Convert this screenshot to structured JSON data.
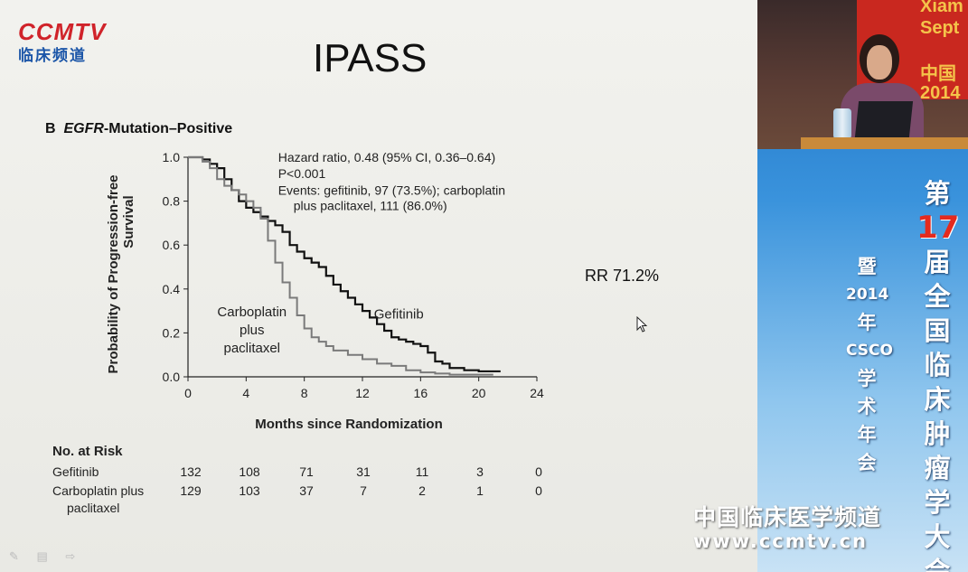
{
  "logo": {
    "main": "CCMTV",
    "sub": "临床频道"
  },
  "slide": {
    "title": "IPASS",
    "rr_text": "RR 71.2%",
    "controls": "✎ ▤ ⇨"
  },
  "chart_data": {
    "type": "line",
    "panel_letter": "B",
    "panel_title_italic": "EGFR",
    "panel_title_rest": "-Mutation–Positive",
    "xlabel": "Months since Randomization",
    "ylabel_line1": "Probability of Progression-free",
    "ylabel_line2": "Survival",
    "xlim": [
      0,
      24
    ],
    "ylim": [
      0,
      1.0
    ],
    "xticks": [
      "0",
      "4",
      "8",
      "12",
      "16",
      "20",
      "24"
    ],
    "yticks": [
      "0.0",
      "0.2",
      "0.4",
      "0.6",
      "0.8",
      "1.0"
    ],
    "annotations": [
      "Hazard ratio, 0.48 (95% CI, 0.36–0.64)",
      "P<0.001",
      "Events: gefitinib, 97 (73.5%); carboplatin",
      "plus paclitaxel, 111 (86.0%)"
    ],
    "series": [
      {
        "name": "Gefitinib",
        "color": "#111111",
        "x": [
          0,
          1,
          1.5,
          2,
          2.5,
          3,
          3.5,
          4,
          4.5,
          5,
          5.5,
          6,
          6.5,
          7,
          7.5,
          8,
          8.5,
          9,
          9.5,
          10,
          10.5,
          11,
          11.5,
          12,
          12.5,
          13,
          13.5,
          14,
          14.5,
          15,
          15.5,
          16,
          16.5,
          17,
          17.5,
          18,
          19,
          20,
          21.5
        ],
        "y": [
          1.0,
          0.99,
          0.97,
          0.95,
          0.9,
          0.85,
          0.8,
          0.77,
          0.75,
          0.73,
          0.71,
          0.69,
          0.66,
          0.6,
          0.57,
          0.54,
          0.52,
          0.5,
          0.46,
          0.42,
          0.39,
          0.36,
          0.33,
          0.3,
          0.27,
          0.24,
          0.21,
          0.18,
          0.17,
          0.16,
          0.15,
          0.14,
          0.11,
          0.07,
          0.06,
          0.04,
          0.03,
          0.025,
          0.025
        ]
      },
      {
        "name": "Carboplatin plus paclitaxel",
        "label_lines": [
          "Carboplatin",
          "plus",
          "paclitaxel"
        ],
        "color": "#7a7a7a",
        "x": [
          0,
          1,
          1.5,
          2,
          2.5,
          3,
          3.5,
          4,
          4.5,
          5,
          5.5,
          6,
          6.5,
          7,
          7.5,
          8,
          8.5,
          9,
          9.5,
          10,
          11,
          12,
          13,
          14,
          15,
          16,
          17,
          18,
          19,
          20,
          21
        ],
        "y": [
          1.0,
          0.98,
          0.95,
          0.9,
          0.87,
          0.85,
          0.83,
          0.8,
          0.77,
          0.72,
          0.62,
          0.52,
          0.43,
          0.36,
          0.28,
          0.22,
          0.18,
          0.16,
          0.14,
          0.12,
          0.1,
          0.08,
          0.06,
          0.05,
          0.03,
          0.02,
          0.015,
          0.01,
          0.01,
          0.01,
          0.01
        ]
      }
    ]
  },
  "risk_table": {
    "title": "No. at Risk",
    "rows": [
      {
        "label_lines": [
          "Gefitinib"
        ],
        "values": [
          "132",
          "108",
          "71",
          "31",
          "11",
          "3",
          "0"
        ]
      },
      {
        "label_lines": [
          "Carboplatin plus",
          "paclitaxel"
        ],
        "values": [
          "129",
          "103",
          "37",
          "7",
          "2",
          "1",
          "0"
        ]
      }
    ]
  },
  "side_panel": {
    "banner_lines": [
      "Xiam",
      "Sept",
      "中国",
      "2014"
    ],
    "vertical_right": [
      "第",
      "17",
      "届",
      "全",
      "国",
      "临",
      "床",
      "肿",
      "瘤",
      "学",
      "大",
      "会"
    ],
    "vertical_left": [
      "暨",
      "2014",
      "年",
      "CSCO",
      "学",
      "术",
      "年",
      "会"
    ]
  },
  "watermark": {
    "cn": "中国临床医学频道",
    "url": "www.ccmtv.cn"
  }
}
